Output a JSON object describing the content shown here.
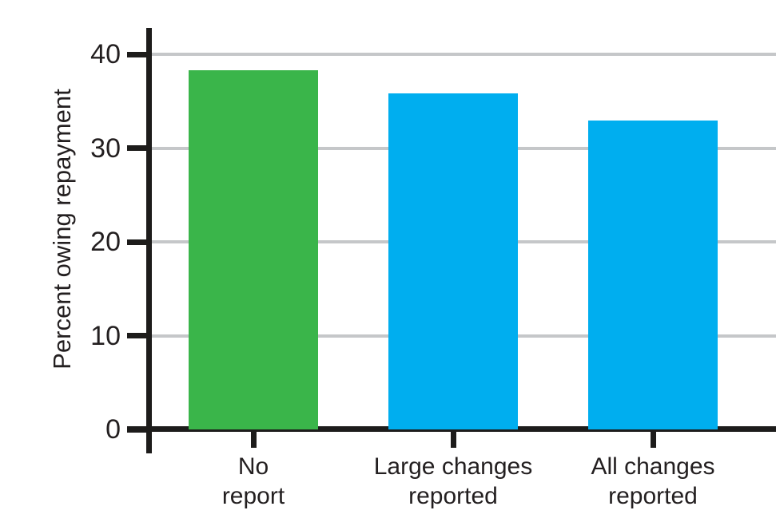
{
  "chart_data": {
    "type": "bar",
    "title": "",
    "xlabel": "",
    "ylabel": "Percent owing repayment",
    "categories": [
      "No report",
      "Large changes reported",
      "All changes reported"
    ],
    "category_lines": [
      [
        "No",
        "report"
      ],
      [
        "Large changes",
        "reported"
      ],
      [
        "All changes",
        "reported"
      ]
    ],
    "values": [
      38.3,
      35.8,
      32.9
    ],
    "bar_colors": [
      "#3ab54a",
      "#00aeef",
      "#00aeef"
    ],
    "ylim": [
      0,
      42.8
    ],
    "yticks": [
      0,
      10,
      20,
      30,
      40
    ],
    "grid": "horizontal gridlines behind bars",
    "legend": "none"
  },
  "style": {
    "green": "#3ab54a",
    "blue": "#00aeef",
    "gridline_color": "#c5c7c9",
    "axis_color": "#1d1c1b",
    "text_color": "#231f20",
    "background": "#ffffff"
  }
}
